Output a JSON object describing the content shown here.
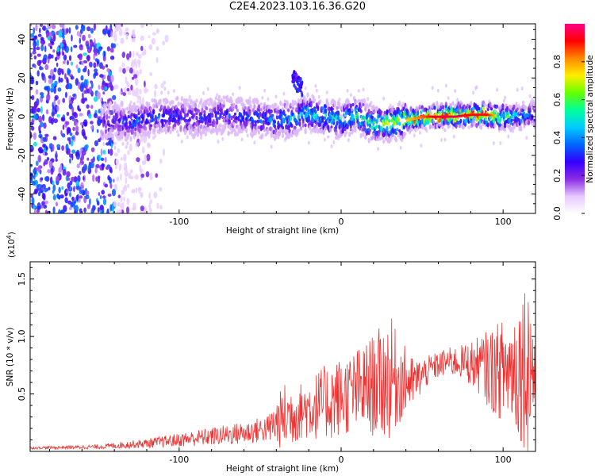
{
  "title": "C2E4.2023.103.16.36.G20",
  "chart_data": [
    {
      "type": "heatmap",
      "name": "spectrogram",
      "xlabel": "Height of straight line (km)",
      "ylabel": "Frequency (Hz)",
      "xlim": [
        -192,
        120
      ],
      "ylim": [
        -50,
        48
      ],
      "xticks": [
        -100,
        0,
        100
      ],
      "yticks": [
        -40,
        -20,
        0,
        20,
        40
      ],
      "grid": false,
      "colorbar": {
        "label": "Normalized spectral amplitude",
        "range": [
          0,
          1
        ],
        "ticks": [
          "0.0",
          "0.2",
          "0.4",
          "0.6",
          "0.8"
        ],
        "colors": [
          "#ffffff",
          "#e6c8ff",
          "#8a2be2",
          "#3300ff",
          "#0066ff",
          "#00ccff",
          "#00ff99",
          "#66ff00",
          "#ffee00",
          "#ff8800",
          "#ff0000",
          "#ff0088"
        ]
      },
      "ridge": {
        "x": [
          -145,
          -130,
          -110,
          -90,
          -70,
          -50,
          -40,
          -30,
          -20,
          -10,
          0,
          10,
          20,
          30,
          40,
          50,
          60,
          70,
          80,
          90,
          100,
          110,
          120
        ],
        "y": [
          -3,
          -2,
          0,
          -1,
          1,
          -1,
          -2,
          -1,
          2,
          0,
          -2,
          1,
          -4,
          -3,
          -2,
          0,
          0,
          0,
          1,
          1,
          0,
          0,
          1
        ],
        "amplitude": [
          0.25,
          0.35,
          0.35,
          0.3,
          0.3,
          0.35,
          0.4,
          0.45,
          0.5,
          0.5,
          0.5,
          0.55,
          0.6,
          0.7,
          0.75,
          0.85,
          0.95,
          0.95,
          0.9,
          0.9,
          0.6,
          0.5,
          0.45
        ]
      },
      "feature": {
        "x": [
          -30,
          -24
        ],
        "y": [
          15,
          24
        ],
        "amplitude": 0.3
      },
      "noise_region_x": [
        -192,
        -140
      ]
    },
    {
      "type": "line",
      "name": "snr",
      "xlabel": "Height of straight line (km)",
      "ylabel": "SNR (10 * v/v)",
      "multiplier": "(x10",
      "multiplier_exp": "4",
      "multiplier_end": ")",
      "xlim": [
        -192,
        120
      ],
      "ylim": [
        0,
        1.65
      ],
      "xticks": [
        -100,
        0,
        100
      ],
      "yticks": [
        0.5,
        1.0,
        1.5
      ],
      "ytick_labels": [
        "0.5",
        "1.0",
        "1.5"
      ],
      "grid": false,
      "color": "#ee3333",
      "envelope": {
        "x": [
          -192,
          -150,
          -120,
          -100,
          -80,
          -60,
          -45,
          -35,
          -25,
          -15,
          -5,
          5,
          15,
          25,
          30,
          35,
          45,
          55,
          65,
          75,
          85,
          95,
          105,
          115,
          120
        ],
        "mean": [
          0.03,
          0.04,
          0.07,
          0.1,
          0.13,
          0.16,
          0.2,
          0.3,
          0.35,
          0.4,
          0.45,
          0.5,
          0.55,
          0.6,
          0.65,
          0.62,
          0.6,
          0.72,
          0.78,
          0.78,
          0.75,
          0.7,
          0.72,
          0.78,
          0.7
        ],
        "amp": [
          0.01,
          0.02,
          0.04,
          0.06,
          0.08,
          0.1,
          0.12,
          0.3,
          0.25,
          0.3,
          0.35,
          0.35,
          0.4,
          0.5,
          0.55,
          0.4,
          0.2,
          0.12,
          0.12,
          0.15,
          0.25,
          0.4,
          0.5,
          0.8,
          0.6
        ]
      }
    }
  ]
}
